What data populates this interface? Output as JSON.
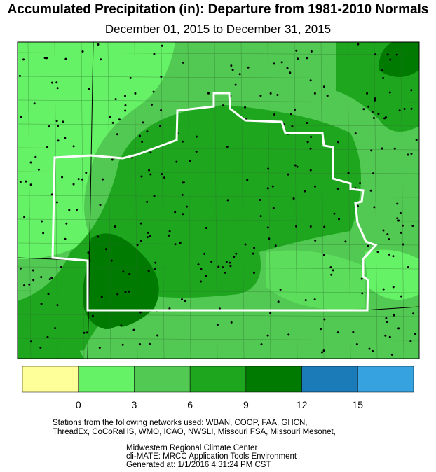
{
  "header": {
    "title": "Accumulated Precipitation (in): Departure from 1981-2010 Normals",
    "subtitle": "December 01, 2015 to December 31, 2015"
  },
  "legend": {
    "colors": [
      "#ffff99",
      "#66f266",
      "#52c952",
      "#1fa61f",
      "#007a00",
      "#1b7ab8",
      "#36a2e0"
    ],
    "ticks": [
      0,
      3,
      6,
      9,
      12,
      15
    ]
  },
  "footer": {
    "networks": [
      "Stations from the following networks used: WBAN, COOP, FAA, GHCN,",
      "ThreadEx, CoCoRaHS, WMO, ICAO, NWSLI, Missouri FSA, Missouri Mesonet,"
    ],
    "credits": [
      "Midwestern Regional Climate Center",
      "cli-MATE: MRCC Application Tools Environment",
      "Generated at: 1/1/2016 4:31:24 PM CST"
    ]
  }
}
